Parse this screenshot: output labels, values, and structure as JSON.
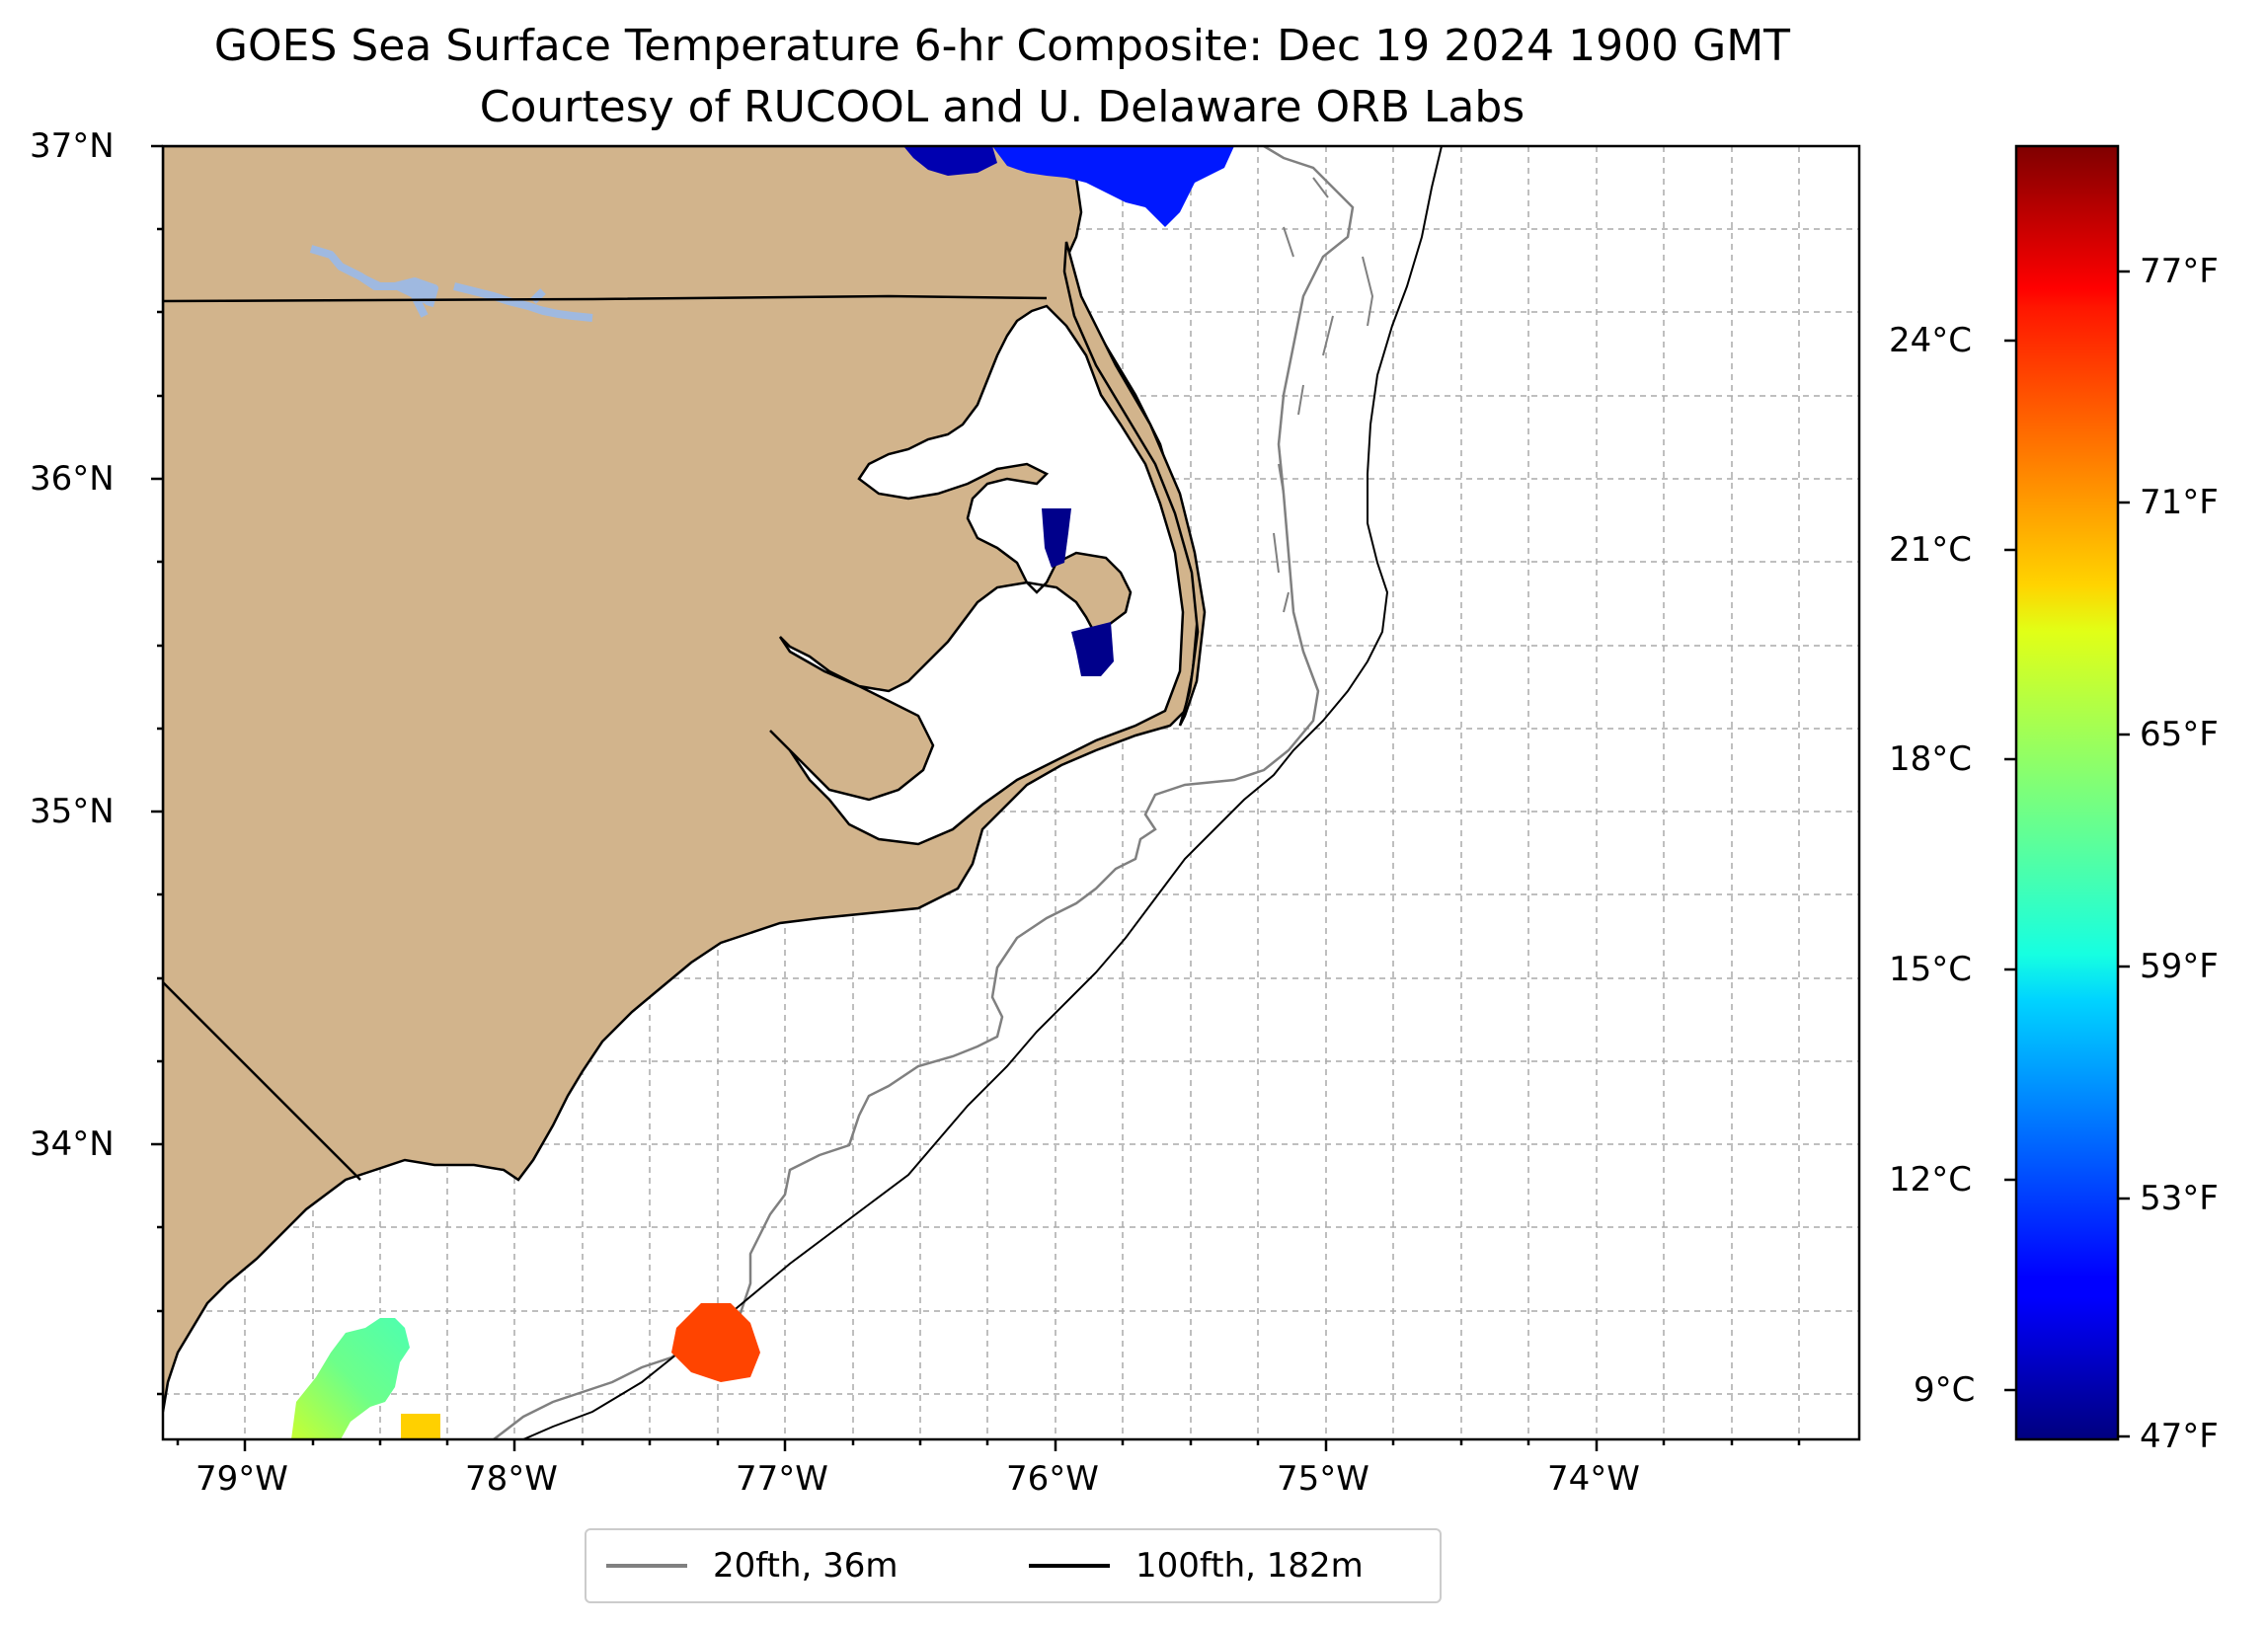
{
  "title": {
    "line1": "GOES Sea Surface Temperature 6-hr Composite: Dec 19 2024 1900 GMT",
    "line2": "Courtesy of RUCOOL and U. Delaware ORB Labs"
  },
  "map": {
    "lon_range": [
      -79.3,
      -73.0
    ],
    "lat_range": [
      33.1,
      37.0
    ],
    "lon_ticks": [
      "79°W",
      "78°W",
      "77°W",
      "76°W",
      "75°W",
      "74°W"
    ],
    "lat_ticks": [
      "37°N",
      "36°N",
      "35°N",
      "34°N"
    ],
    "gridlines": true,
    "land_color": "#d2b48c",
    "lake_color": "#9fb9e0",
    "isobath_20fth_color": "#808080",
    "isobath_100fth_color": "#000000"
  },
  "colorbar": {
    "celsius_ticks": [
      "24°C",
      "21°C",
      "18°C",
      "15°C",
      "12°C",
      "9°C"
    ],
    "fahrenheit_ticks": [
      "77°F",
      "71°F",
      "65°F",
      "59°F",
      "53°F",
      "47°F"
    ],
    "colormap": "jet"
  },
  "legend": {
    "items": [
      {
        "label": "20fth, 36m",
        "color": "#808080"
      },
      {
        "label": "100fth, 182m",
        "color": "#000000"
      }
    ]
  }
}
